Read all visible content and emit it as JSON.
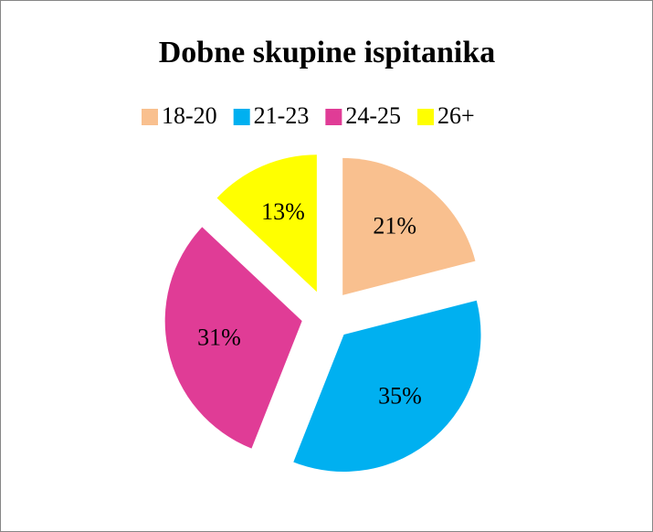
{
  "chart_data": {
    "type": "pie",
    "title": "Dobne skupine ispitanika",
    "categories": [
      "18-20",
      "21-23",
      "24-25",
      "26+"
    ],
    "values": [
      21,
      35,
      31,
      13
    ],
    "value_labels": [
      "21%",
      "35%",
      "31%",
      "13%"
    ],
    "colors": [
      "#f9c08f",
      "#00b0f0",
      "#e03c96",
      "#ffff00"
    ],
    "legend": "top"
  }
}
